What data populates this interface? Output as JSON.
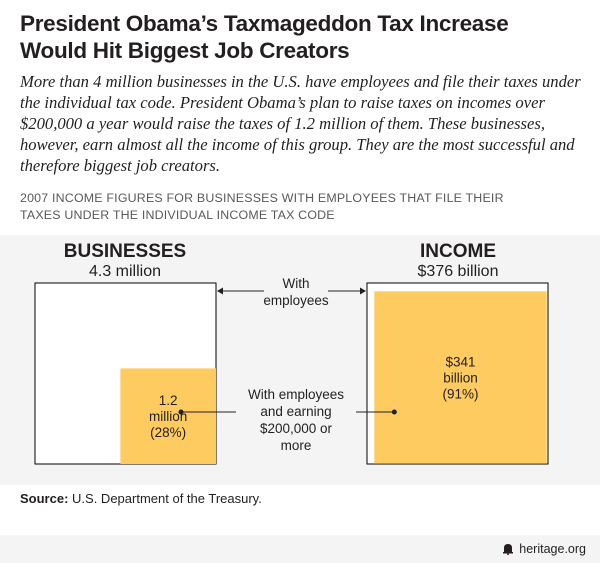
{
  "header": {
    "title": "President Obama’s Taxmageddon Tax Increase Would Hit Biggest Job Creators",
    "subtitle": "More than 4 million businesses in the U.S. have employees and file their taxes under the individual tax code. President Obama’s plan to raise taxes on incomes over $200,000 a year would raise the taxes of 1.2 million of them. These businesses, however, earn almost all the income of this group. They are the most successful and therefore biggest job creators.",
    "caption": "2007 INCOME FIGURES FOR BUSINESSES WITH EMPLOYEES THAT FILE THEIR TAXES UNDER THE INDIVIDUAL INCOME TAX CODE"
  },
  "chart_data": {
    "type": "nested-area",
    "panels": [
      {
        "title": "BUSINESSES",
        "total_label": "4.3 million",
        "total": 4.3,
        "part": 1.2,
        "part_share": 0.28,
        "part_label": [
          "1.2",
          "million",
          "(28%)"
        ]
      },
      {
        "title": "INCOME",
        "total_label": "$376 billion",
        "total": 376,
        "part": 341,
        "part_share": 0.91,
        "part_label": [
          "$341",
          "billion",
          "(91%)"
        ]
      }
    ],
    "annotations": {
      "total": [
        "With",
        "employees"
      ],
      "part": [
        "With employees",
        "and earning",
        "$200,000 or",
        "more"
      ]
    },
    "colors": {
      "fill": "#fdcb5f",
      "outline": "#000000",
      "background": "#f4f4f4",
      "whole": "#ffffff"
    }
  },
  "source": {
    "label": "Source:",
    "text": "U.S. Department of the Treasury."
  },
  "brand": {
    "text": "heritage.org",
    "icon": "bell-icon"
  }
}
